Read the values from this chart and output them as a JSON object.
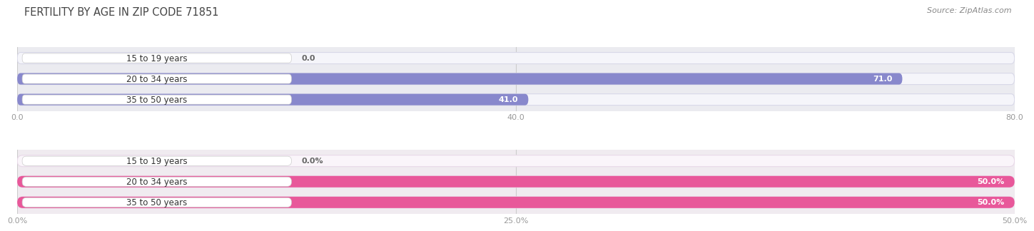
{
  "title": "FERTILITY BY AGE IN ZIP CODE 71851",
  "source": "Source: ZipAtlas.com",
  "top_chart": {
    "categories": [
      "15 to 19 years",
      "20 to 34 years",
      "35 to 50 years"
    ],
    "values": [
      0.0,
      71.0,
      41.0
    ],
    "xlim_max": 80,
    "xticks": [
      0.0,
      40.0,
      80.0
    ],
    "xtick_labels": [
      "0.0",
      "40.0",
      "80.0"
    ],
    "bar_color": "#8888cc",
    "small_bar_color": "#aaaadd",
    "label_inside_color": "#ffffff",
    "label_outside_color": "#666666",
    "bg_color": "#ebebf0",
    "track_color": "#f5f5fa",
    "track_border_color": "#d8d8e8"
  },
  "bottom_chart": {
    "categories": [
      "15 to 19 years",
      "20 to 34 years",
      "35 to 50 years"
    ],
    "values": [
      0.0,
      50.0,
      50.0
    ],
    "xlim_max": 50,
    "xticks": [
      0.0,
      25.0,
      50.0
    ],
    "xtick_labels": [
      "0.0%",
      "25.0%",
      "50.0%"
    ],
    "bar_color": "#e8589a",
    "small_bar_color": "#f0a0c0",
    "label_inside_color": "#ffffff",
    "label_outside_color": "#666666",
    "bg_color": "#f0ebf0",
    "track_color": "#faf5fa",
    "track_border_color": "#e8d8e8"
  },
  "title_fontsize": 10.5,
  "source_fontsize": 8,
  "label_fontsize": 8,
  "cat_fontsize": 8.5,
  "tick_fontsize": 8,
  "bar_height": 0.55,
  "title_color": "#444444",
  "source_color": "#888888",
  "tick_color": "#999999",
  "cat_text_color": "#333333",
  "cat_box_color": "#ffffff",
  "fig_bg": "#ffffff"
}
